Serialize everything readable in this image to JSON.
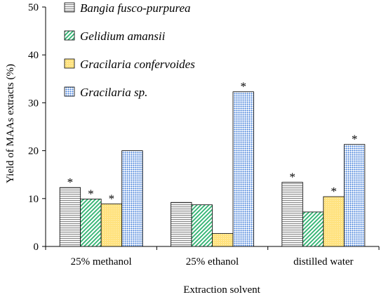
{
  "chart_data": {
    "type": "bar",
    "xlabel": "Extraction solvent",
    "ylabel": "Yield of MAAs extracts  (%)",
    "ylim": [
      0,
      50
    ],
    "yticks": [
      "0",
      "10",
      "20",
      "30",
      "40",
      "50"
    ],
    "categories": [
      "25% methanol",
      "25% ethanol",
      "distilled water"
    ],
    "legend_position": "top-left",
    "series": [
      {
        "name": "Bangia fusco-purpurea",
        "values": [
          12.3,
          9.2,
          13.4
        ],
        "pattern": "horizontal-lines",
        "color": "#bdbdbd",
        "stars": [
          true,
          false,
          true
        ]
      },
      {
        "name": "Gelidium amansii",
        "values": [
          9.9,
          8.7,
          7.2
        ],
        "pattern": "diagonal-lines",
        "color": "#2db26f",
        "stars": [
          true,
          false,
          false
        ]
      },
      {
        "name": "Gracilaria confervoides",
        "values": [
          8.9,
          2.7,
          10.4
        ],
        "pattern": "light-fill",
        "color": "#ffe07a",
        "stars": [
          true,
          false,
          true
        ]
      },
      {
        "name": "Gracilaria sp.",
        "values": [
          20.0,
          32.3,
          21.3
        ],
        "pattern": "dots",
        "color": "#3a7ad9",
        "stars": [
          false,
          true,
          true
        ]
      }
    ],
    "annotation_symbol": "*"
  }
}
